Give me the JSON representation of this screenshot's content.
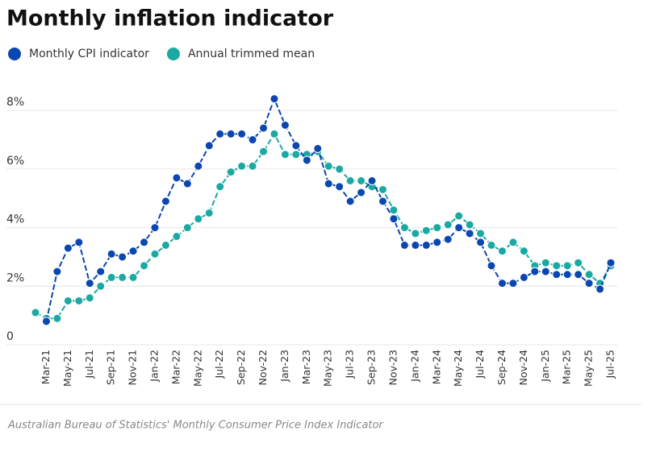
{
  "chart_data": {
    "type": "line",
    "title": "Monthly inflation indicator",
    "source": "Australian Bureau of Statistics' Monthly Consumer Price Index Indicator",
    "categories": [
      null,
      "Mar-21",
      null,
      "May-21",
      null,
      "Jul-21",
      null,
      "Sep-21",
      null,
      "Nov-21",
      null,
      "Jan-22",
      null,
      "Mar-22",
      null,
      "May-22",
      null,
      "Jul-22",
      null,
      "Sep-22",
      null,
      "Nov-22",
      null,
      "Jan-23",
      null,
      "Mar-23",
      null,
      "May-23",
      null,
      "Jul-23",
      null,
      "Sep-23",
      null,
      "Nov-23",
      null,
      "Jan-24",
      null,
      "Mar-24",
      null,
      "May-24",
      null,
      "Jul-24",
      null,
      "Sep-24",
      null,
      "Nov-24",
      null,
      "Jan-25",
      null,
      "Mar-25",
      null,
      "May-25",
      null,
      "Jul-25"
    ],
    "series": [
      {
        "name": "Monthly CPI indicator",
        "color": "#0b47b0",
        "values": [
          null,
          0.8,
          2.5,
          3.3,
          3.5,
          2.1,
          2.5,
          3.1,
          3.0,
          3.2,
          3.5,
          4.0,
          4.9,
          5.7,
          5.5,
          6.1,
          6.8,
          7.2,
          7.2,
          7.2,
          7.0,
          7.4,
          8.4,
          7.5,
          6.8,
          6.3,
          6.7,
          5.5,
          5.4,
          4.9,
          5.2,
          5.6,
          4.9,
          4.3,
          3.4,
          3.4,
          3.4,
          3.5,
          3.6,
          4.0,
          3.8,
          3.5,
          2.7,
          2.1,
          2.1,
          2.3,
          2.5,
          2.5,
          2.4,
          2.4,
          2.4,
          2.1,
          1.9,
          2.8
        ]
      },
      {
        "name": "Annual trimmed mean",
        "color": "#1ba9a3",
        "values": [
          1.1,
          0.9,
          0.9,
          1.5,
          1.5,
          1.6,
          2.0,
          2.3,
          2.3,
          2.3,
          2.7,
          3.1,
          3.4,
          3.7,
          4.0,
          4.3,
          4.5,
          5.4,
          5.9,
          6.1,
          6.1,
          6.6,
          7.2,
          6.5,
          6.5,
          6.5,
          6.6,
          6.1,
          6.0,
          5.6,
          5.6,
          5.4,
          5.3,
          4.6,
          4.0,
          3.8,
          3.9,
          4.0,
          4.1,
          4.4,
          4.1,
          3.8,
          3.4,
          3.2,
          3.5,
          3.2,
          2.7,
          2.8,
          2.7,
          2.7,
          2.8,
          2.4,
          2.1,
          2.7
        ]
      }
    ],
    "ylim": [
      0,
      8.5
    ],
    "yticks": [
      0,
      {
        "value": 2,
        "label": "2%"
      },
      {
        "value": 4,
        "label": "4%"
      },
      {
        "value": 6,
        "label": "6%"
      },
      {
        "value": 8,
        "label": "8%"
      }
    ],
    "grid": true
  }
}
